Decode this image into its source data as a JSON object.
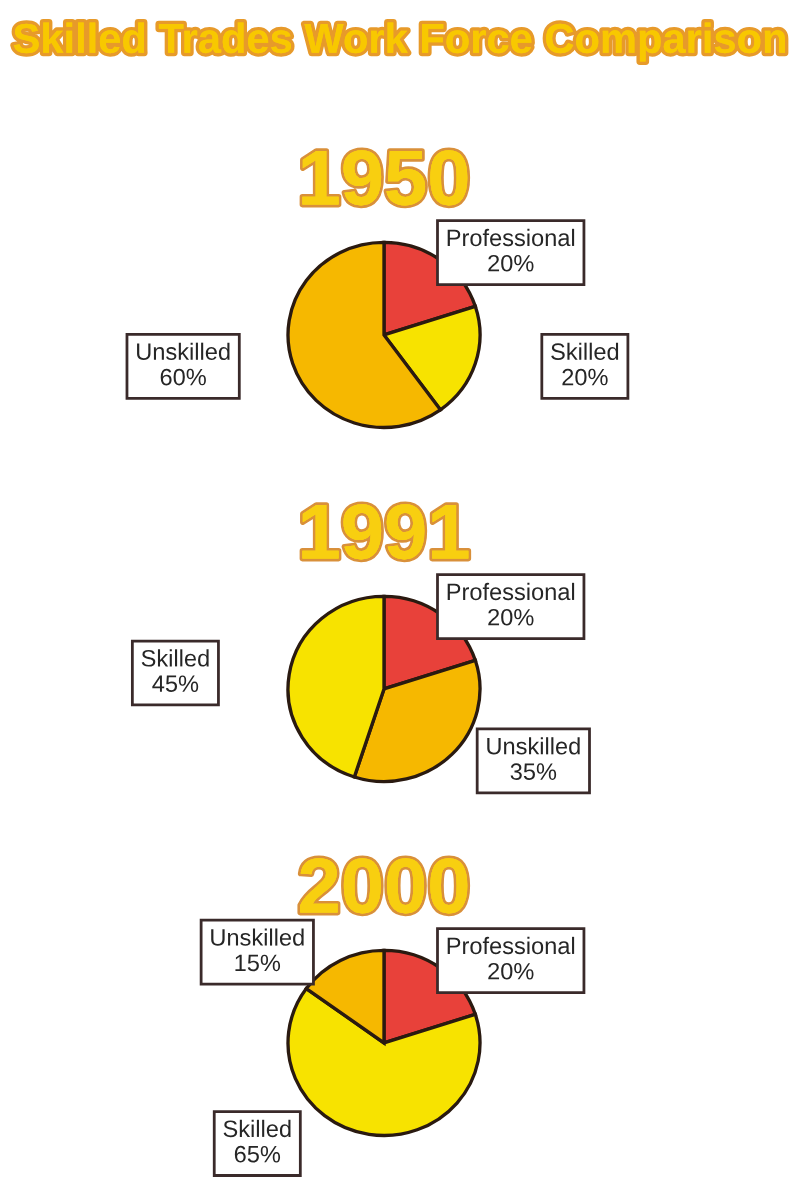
{
  "chart_data": [
    {
      "type": "pie",
      "title": "Skilled Trades Work Force Comparison",
      "subtitle": "1950",
      "categories": [
        "Professional",
        "Skilled",
        "Unskilled"
      ],
      "values": [
        20,
        20,
        60
      ],
      "value_labels": [
        "20%",
        "20%",
        "60%"
      ],
      "colors": [
        "#e8413a",
        "#f7e300",
        "#f6b800"
      ]
    },
    {
      "type": "pie",
      "title": "1991",
      "categories": [
        "Professional",
        "Unskilled",
        "Skilled"
      ],
      "values": [
        20,
        35,
        45
      ],
      "value_labels": [
        "20%",
        "35%",
        "45%"
      ],
      "colors": [
        "#e8413a",
        "#f6b800",
        "#f7e300"
      ]
    },
    {
      "type": "pie",
      "title": "2000",
      "categories": [
        "Professional",
        "Skilled",
        "Unskilled"
      ],
      "values": [
        20,
        65,
        15
      ],
      "value_labels": [
        "20%",
        "65%",
        "15%"
      ],
      "colors": [
        "#e8413a",
        "#f7e300",
        "#f6b800"
      ]
    }
  ]
}
